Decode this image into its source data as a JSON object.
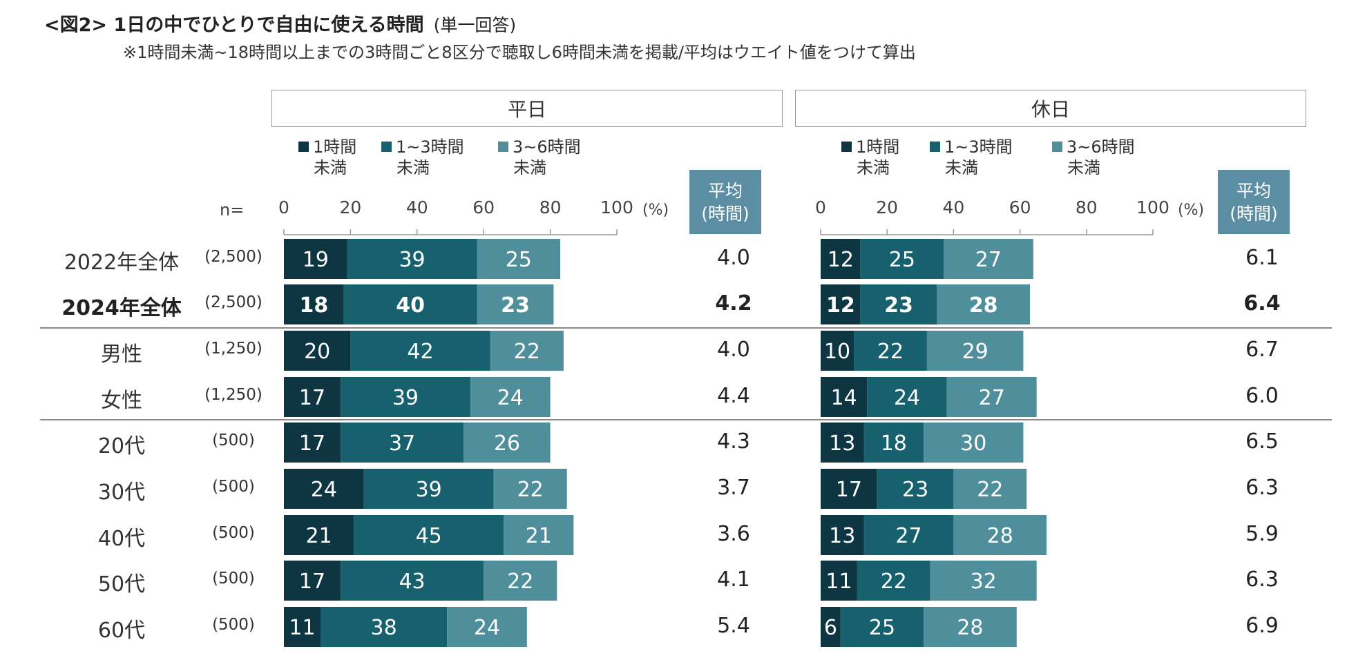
{
  "title": "<図2> 1日の中でひとりで自由に使える時間",
  "title_note": "(単一回答)",
  "subtitle": "※1時間未満~18時間以上までの3時間ごと8区分で聴取し6時間未満を掲載/平均はウエイト値をつけて算出",
  "n_label": "n=",
  "pct_label": "(%)",
  "avg_header": {
    "line1": "平均",
    "line2": "(時間)"
  },
  "colors": {
    "s1": "#0d3642",
    "s2": "#17606d",
    "s3": "#4f8f9c",
    "axis": "#999999"
  },
  "chart_data": [
    {
      "type": "bar",
      "orientation": "horizontal",
      "stacked": true,
      "title": "平日",
      "xlim": [
        0,
        100
      ],
      "ticks": [
        "0",
        "20",
        "40",
        "60",
        "80",
        "100"
      ],
      "legend": [
        {
          "line1": "1時間",
          "line2": "未満"
        },
        {
          "line1": "1~3時間",
          "line2": "未満"
        },
        {
          "line1": "3~6時間",
          "line2": "未満"
        }
      ],
      "categories": [
        "2022年全体",
        "2024年全体",
        "男性",
        "女性",
        "20代",
        "30代",
        "40代",
        "50代",
        "60代"
      ],
      "series": [
        {
          "name": "1時間未満",
          "values": [
            19,
            18,
            20,
            17,
            17,
            24,
            21,
            17,
            11
          ]
        },
        {
          "name": "1~3時間未満",
          "values": [
            39,
            40,
            42,
            39,
            37,
            39,
            45,
            43,
            38
          ]
        },
        {
          "name": "3~6時間未満",
          "values": [
            25,
            23,
            22,
            24,
            26,
            22,
            21,
            22,
            24
          ]
        }
      ],
      "average_hours": [
        "4.0",
        "4.2",
        "4.0",
        "4.4",
        "4.3",
        "3.7",
        "3.6",
        "4.1",
        "5.4"
      ]
    },
    {
      "type": "bar",
      "orientation": "horizontal",
      "stacked": true,
      "title": "休日",
      "xlim": [
        0,
        100
      ],
      "ticks": [
        "0",
        "20",
        "40",
        "60",
        "80",
        "100"
      ],
      "legend": [
        {
          "line1": "1時間",
          "line2": "未満"
        },
        {
          "line1": "1~3時間",
          "line2": "未満"
        },
        {
          "line1": "3~6時間",
          "line2": "未満"
        }
      ],
      "categories": [
        "2022年全体",
        "2024年全体",
        "男性",
        "女性",
        "20代",
        "30代",
        "40代",
        "50代",
        "60代"
      ],
      "series": [
        {
          "name": "1時間未満",
          "values": [
            12,
            12,
            10,
            14,
            13,
            17,
            13,
            11,
            6
          ]
        },
        {
          "name": "1~3時間未満",
          "values": [
            25,
            23,
            22,
            24,
            18,
            23,
            27,
            22,
            25
          ]
        },
        {
          "name": "3~6時間未満",
          "values": [
            27,
            28,
            29,
            27,
            30,
            22,
            28,
            32,
            28
          ]
        }
      ],
      "average_hours": [
        "6.1",
        "6.4",
        "6.7",
        "6.0",
        "6.5",
        "6.3",
        "5.9",
        "6.3",
        "6.9"
      ]
    }
  ],
  "rows": [
    {
      "label": "2022年全体",
      "n": "(2,500)"
    },
    {
      "label": "2024年全体",
      "n": "(2,500)"
    },
    {
      "label": "男性",
      "n": "(1,250)"
    },
    {
      "label": "女性",
      "n": "(1,250)"
    },
    {
      "label": "20代",
      "n": "(500)"
    },
    {
      "label": "30代",
      "n": "(500)"
    },
    {
      "label": "40代",
      "n": "(500)"
    },
    {
      "label": "50代",
      "n": "(500)"
    },
    {
      "label": "60代",
      "n": "(500)"
    }
  ],
  "highlight_row": "2024年全体"
}
